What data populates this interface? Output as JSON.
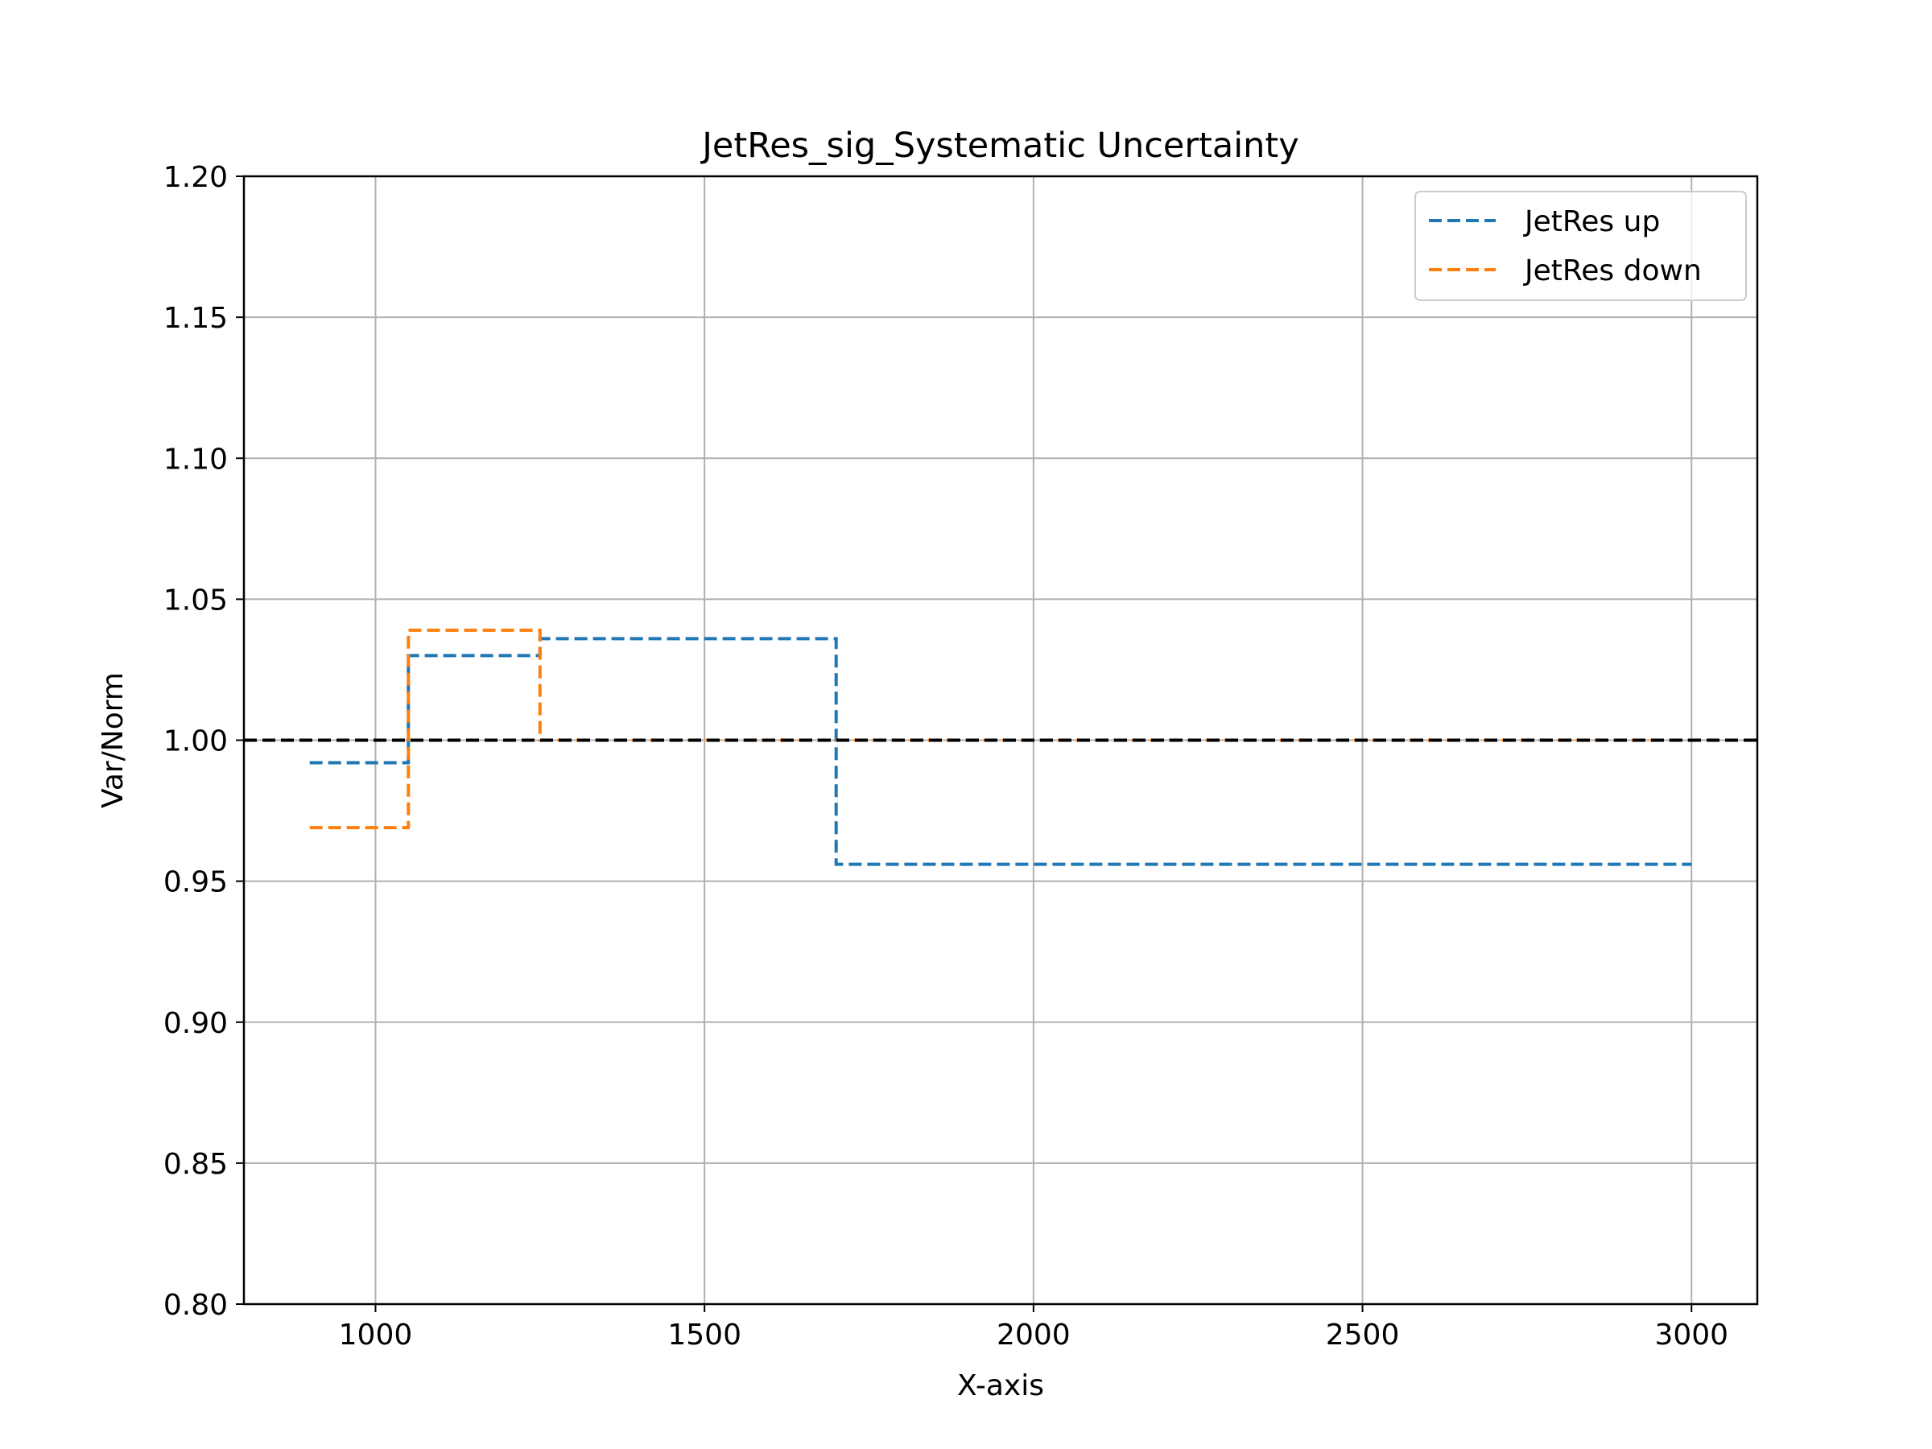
{
  "chart_data": {
    "type": "line",
    "title": "JetRes_sig_Systematic Uncertainty",
    "xlabel": "X-axis",
    "ylabel": "Var/Norm",
    "xlim": [
      800,
      3100
    ],
    "ylim": [
      0.8,
      1.2
    ],
    "xticks": [
      1000,
      1500,
      2000,
      2500,
      3000
    ],
    "yticks": [
      0.8,
      0.85,
      0.9,
      0.95,
      1.0,
      1.05,
      1.1,
      1.15,
      1.2
    ],
    "xtick_labels": [
      "1000",
      "1500",
      "2000",
      "2500",
      "3000"
    ],
    "ytick_labels": [
      "0.80",
      "0.85",
      "0.90",
      "0.95",
      "1.00",
      "1.05",
      "1.10",
      "1.15",
      "1.20"
    ],
    "grid": true,
    "legend_position": "top-right",
    "reference_line": {
      "y": 1.0,
      "color": "#000000",
      "style": "dashed"
    },
    "series": [
      {
        "name": "JetRes up",
        "color": "#1f77b4",
        "style": "dashed-step",
        "edges": [
          900,
          1050,
          1250,
          1700,
          3000
        ],
        "values": [
          0.992,
          1.03,
          1.036,
          0.956
        ]
      },
      {
        "name": "JetRes down",
        "color": "#ff7f0e",
        "style": "dashed-step",
        "edges": [
          900,
          1050,
          1250,
          1700,
          3000
        ],
        "values": [
          0.969,
          1.039,
          1.0,
          1.0
        ]
      }
    ]
  }
}
